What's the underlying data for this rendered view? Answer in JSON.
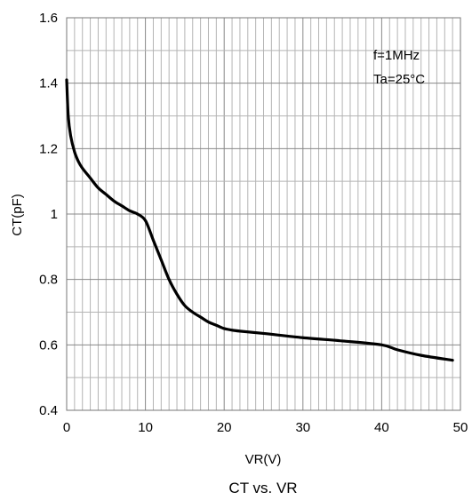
{
  "chart_data": {
    "type": "line",
    "title": "CT vs. VR",
    "xlabel": "VR(V)",
    "ylabel": "CT(pF)",
    "xlim": [
      0,
      50
    ],
    "ylim": [
      0.4,
      1.6
    ],
    "x_ticks": [
      "0",
      "10",
      "20",
      "30",
      "40",
      "50"
    ],
    "y_ticks": [
      "0.4",
      "0.6",
      "0.8",
      "1",
      "1.2",
      "1.4",
      "1.6"
    ],
    "grid": true,
    "annotations": [
      "f=1MHz",
      "Ta=25°C"
    ],
    "series": [
      {
        "x": [
          0,
          0.2,
          0.5,
          1,
          1.5,
          2,
          3,
          4,
          5,
          6,
          7,
          8,
          9,
          10,
          11,
          12,
          13,
          14,
          15,
          16,
          17,
          18,
          19,
          20,
          21,
          22,
          25,
          30,
          35,
          40,
          42,
          45,
          49
        ],
        "y": [
          1.41,
          1.3,
          1.24,
          1.19,
          1.16,
          1.14,
          1.11,
          1.08,
          1.06,
          1.04,
          1.025,
          1.01,
          1.0,
          0.98,
          0.92,
          0.86,
          0.8,
          0.755,
          0.72,
          0.7,
          0.685,
          0.67,
          0.66,
          0.65,
          0.645,
          0.642,
          0.635,
          0.622,
          0.612,
          0.6,
          0.585,
          0.568,
          0.553
        ]
      }
    ]
  }
}
